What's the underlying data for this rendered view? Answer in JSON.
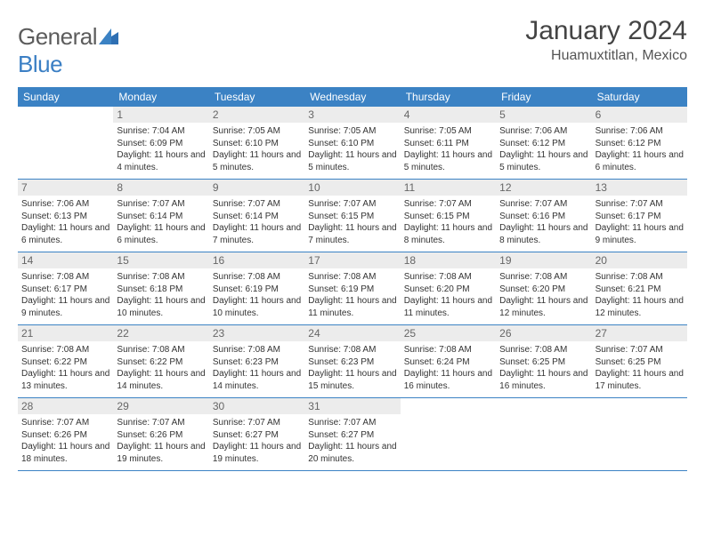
{
  "brand": {
    "name_gray": "General",
    "name_blue": "Blue"
  },
  "title": "January 2024",
  "location": "Huamuxtitlan, Mexico",
  "colors": {
    "header_bg": "#3b82c4",
    "header_text": "#ffffff",
    "daynum_bg": "#ececec",
    "daynum_text": "#666666",
    "body_text": "#333333",
    "rule": "#3b82c4",
    "page_bg": "#ffffff"
  },
  "weekdays": [
    "Sunday",
    "Monday",
    "Tuesday",
    "Wednesday",
    "Thursday",
    "Friday",
    "Saturday"
  ],
  "grid": {
    "rows": 5,
    "cols": 7,
    "start_offset": 1,
    "days_in_month": 31
  },
  "days": [
    {
      "n": 1,
      "sunrise": "7:04 AM",
      "sunset": "6:09 PM",
      "daylight": "11 hours and 4 minutes."
    },
    {
      "n": 2,
      "sunrise": "7:05 AM",
      "sunset": "6:10 PM",
      "daylight": "11 hours and 5 minutes."
    },
    {
      "n": 3,
      "sunrise": "7:05 AM",
      "sunset": "6:10 PM",
      "daylight": "11 hours and 5 minutes."
    },
    {
      "n": 4,
      "sunrise": "7:05 AM",
      "sunset": "6:11 PM",
      "daylight": "11 hours and 5 minutes."
    },
    {
      "n": 5,
      "sunrise": "7:06 AM",
      "sunset": "6:12 PM",
      "daylight": "11 hours and 5 minutes."
    },
    {
      "n": 6,
      "sunrise": "7:06 AM",
      "sunset": "6:12 PM",
      "daylight": "11 hours and 6 minutes."
    },
    {
      "n": 7,
      "sunrise": "7:06 AM",
      "sunset": "6:13 PM",
      "daylight": "11 hours and 6 minutes."
    },
    {
      "n": 8,
      "sunrise": "7:07 AM",
      "sunset": "6:14 PM",
      "daylight": "11 hours and 6 minutes."
    },
    {
      "n": 9,
      "sunrise": "7:07 AM",
      "sunset": "6:14 PM",
      "daylight": "11 hours and 7 minutes."
    },
    {
      "n": 10,
      "sunrise": "7:07 AM",
      "sunset": "6:15 PM",
      "daylight": "11 hours and 7 minutes."
    },
    {
      "n": 11,
      "sunrise": "7:07 AM",
      "sunset": "6:15 PM",
      "daylight": "11 hours and 8 minutes."
    },
    {
      "n": 12,
      "sunrise": "7:07 AM",
      "sunset": "6:16 PM",
      "daylight": "11 hours and 8 minutes."
    },
    {
      "n": 13,
      "sunrise": "7:07 AM",
      "sunset": "6:17 PM",
      "daylight": "11 hours and 9 minutes."
    },
    {
      "n": 14,
      "sunrise": "7:08 AM",
      "sunset": "6:17 PM",
      "daylight": "11 hours and 9 minutes."
    },
    {
      "n": 15,
      "sunrise": "7:08 AM",
      "sunset": "6:18 PM",
      "daylight": "11 hours and 10 minutes."
    },
    {
      "n": 16,
      "sunrise": "7:08 AM",
      "sunset": "6:19 PM",
      "daylight": "11 hours and 10 minutes."
    },
    {
      "n": 17,
      "sunrise": "7:08 AM",
      "sunset": "6:19 PM",
      "daylight": "11 hours and 11 minutes."
    },
    {
      "n": 18,
      "sunrise": "7:08 AM",
      "sunset": "6:20 PM",
      "daylight": "11 hours and 11 minutes."
    },
    {
      "n": 19,
      "sunrise": "7:08 AM",
      "sunset": "6:20 PM",
      "daylight": "11 hours and 12 minutes."
    },
    {
      "n": 20,
      "sunrise": "7:08 AM",
      "sunset": "6:21 PM",
      "daylight": "11 hours and 12 minutes."
    },
    {
      "n": 21,
      "sunrise": "7:08 AM",
      "sunset": "6:22 PM",
      "daylight": "11 hours and 13 minutes."
    },
    {
      "n": 22,
      "sunrise": "7:08 AM",
      "sunset": "6:22 PM",
      "daylight": "11 hours and 14 minutes."
    },
    {
      "n": 23,
      "sunrise": "7:08 AM",
      "sunset": "6:23 PM",
      "daylight": "11 hours and 14 minutes."
    },
    {
      "n": 24,
      "sunrise": "7:08 AM",
      "sunset": "6:23 PM",
      "daylight": "11 hours and 15 minutes."
    },
    {
      "n": 25,
      "sunrise": "7:08 AM",
      "sunset": "6:24 PM",
      "daylight": "11 hours and 16 minutes."
    },
    {
      "n": 26,
      "sunrise": "7:08 AM",
      "sunset": "6:25 PM",
      "daylight": "11 hours and 16 minutes."
    },
    {
      "n": 27,
      "sunrise": "7:07 AM",
      "sunset": "6:25 PM",
      "daylight": "11 hours and 17 minutes."
    },
    {
      "n": 28,
      "sunrise": "7:07 AM",
      "sunset": "6:26 PM",
      "daylight": "11 hours and 18 minutes."
    },
    {
      "n": 29,
      "sunrise": "7:07 AM",
      "sunset": "6:26 PM",
      "daylight": "11 hours and 19 minutes."
    },
    {
      "n": 30,
      "sunrise": "7:07 AM",
      "sunset": "6:27 PM",
      "daylight": "11 hours and 19 minutes."
    },
    {
      "n": 31,
      "sunrise": "7:07 AM",
      "sunset": "6:27 PM",
      "daylight": "11 hours and 20 minutes."
    }
  ],
  "labels": {
    "sunrise": "Sunrise:",
    "sunset": "Sunset:",
    "daylight": "Daylight:"
  }
}
